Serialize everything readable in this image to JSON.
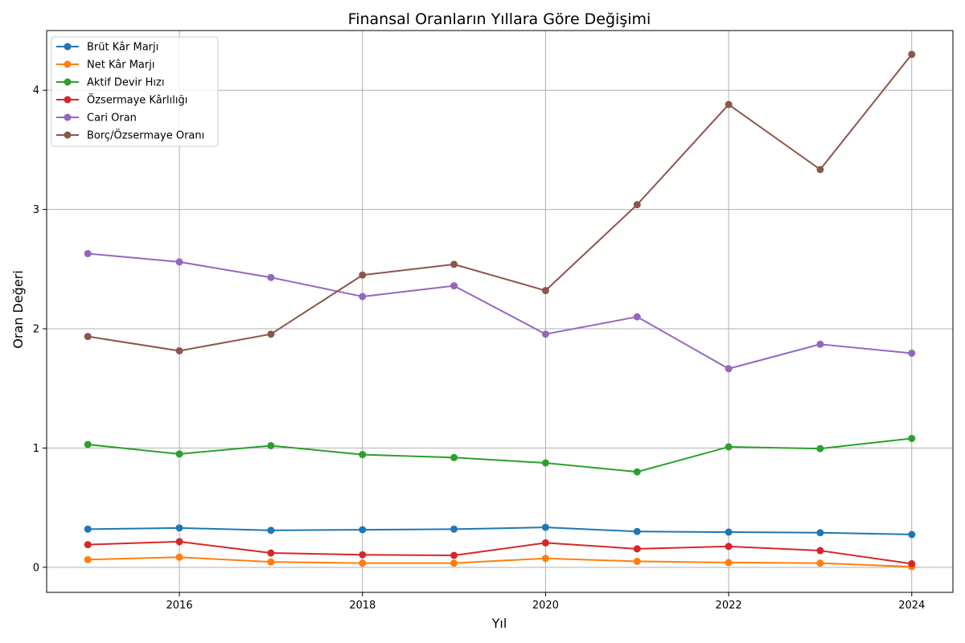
{
  "chart_data": {
    "type": "line",
    "title": "Finansal Oranların Yıllara Göre Değişimi",
    "xlabel": "Yıl",
    "ylabel": "Oran Değeri",
    "x": [
      2015,
      2016,
      2017,
      2018,
      2019,
      2020,
      2021,
      2022,
      2023,
      2024
    ],
    "xlim": [
      2014.55,
      2024.45
    ],
    "ylim": [
      -0.21,
      4.5
    ],
    "xticks": [
      2016,
      2018,
      2020,
      2022,
      2024
    ],
    "yticks": [
      0,
      1,
      2,
      3,
      4
    ],
    "xtick_labels": [
      "2016",
      "2018",
      "2020",
      "2022",
      "2024"
    ],
    "ytick_labels": [
      "0",
      "1",
      "2",
      "3",
      "4"
    ],
    "grid": true,
    "legend_position": "top-left",
    "series": [
      {
        "name": "Brüt Kâr Marjı",
        "color": "#1f77b4",
        "values": [
          0.32,
          0.33,
          0.31,
          0.315,
          0.32,
          0.335,
          0.3,
          0.295,
          0.29,
          0.275
        ]
      },
      {
        "name": "Net Kâr Marjı",
        "color": "#ff7f0e",
        "values": [
          0.065,
          0.085,
          0.045,
          0.035,
          0.035,
          0.075,
          0.05,
          0.04,
          0.035,
          0.005
        ]
      },
      {
        "name": "Aktif Devir Hızı",
        "color": "#2ca02c",
        "values": [
          1.03,
          0.95,
          1.02,
          0.945,
          0.92,
          0.875,
          0.8,
          1.01,
          0.995,
          1.08
        ]
      },
      {
        "name": "Özsermaye Kârlılığı",
        "color": "#d62728",
        "values": [
          0.19,
          0.215,
          0.12,
          0.105,
          0.1,
          0.205,
          0.155,
          0.175,
          0.14,
          0.03
        ]
      },
      {
        "name": "Cari Oran",
        "color": "#9467bd",
        "values": [
          2.63,
          2.56,
          2.43,
          2.27,
          2.36,
          1.955,
          2.1,
          1.665,
          1.87,
          1.795
        ]
      },
      {
        "name": "Borç/Özsermaye Oranı",
        "color": "#8c564b",
        "values": [
          1.935,
          1.815,
          1.955,
          2.45,
          2.54,
          2.32,
          3.04,
          3.88,
          3.335,
          4.3
        ]
      }
    ]
  }
}
